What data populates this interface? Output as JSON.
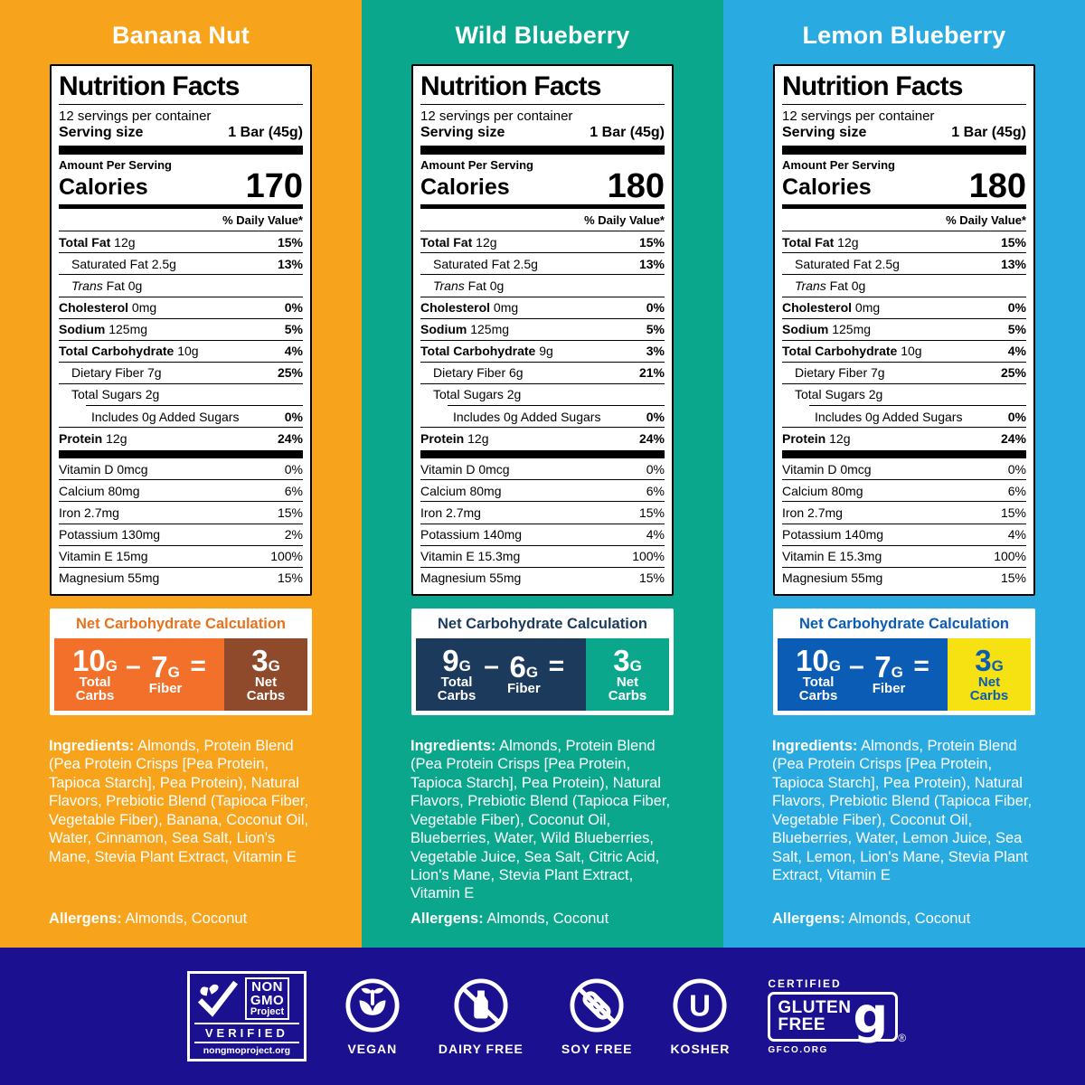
{
  "panels": [
    {
      "flavor": "Banana Nut",
      "bg": "#F7A31B",
      "label": {
        "title": "Nutrition Facts",
        "servings": "12 servings per container",
        "serving_size_label": "Serving size",
        "serving_size_value": "1 Bar (45g)",
        "amount_per": "Amount Per Serving",
        "calories_label": "Calories",
        "calories": "170",
        "dv_header": "% Daily Value*",
        "nutrients": [
          {
            "label": "Total Fat",
            "amount": "12g",
            "dv": "15%",
            "bold": true,
            "indent": 0
          },
          {
            "label": "Saturated Fat",
            "amount": "2.5g",
            "dv": "13%",
            "indent": 1
          },
          {
            "label": "Trans Fat",
            "amount": "0g",
            "dv": "",
            "indent": 1,
            "italic": true
          },
          {
            "label": "Cholesterol",
            "amount": "0mg",
            "dv": "0%",
            "bold": true,
            "indent": 0
          },
          {
            "label": "Sodium",
            "amount": "125mg",
            "dv": "5%",
            "bold": true,
            "indent": 0
          },
          {
            "label": "Total Carbohydrate",
            "amount": "10g",
            "dv": "4%",
            "bold": true,
            "indent": 0
          },
          {
            "label": "Dietary Fiber",
            "amount": "7g",
            "dv": "25%",
            "indent": 1
          },
          {
            "label": "Total Sugars",
            "amount": "2g",
            "dv": "",
            "indent": 1
          },
          {
            "label": "Includes 0g Added Sugars",
            "amount": "",
            "dv": "0%",
            "indent": 2
          },
          {
            "label": "Protein",
            "amount": "12g",
            "dv": "24%",
            "bold": true,
            "indent": 0
          }
        ],
        "vitamins": [
          {
            "label": "Vitamin D 0mcg",
            "dv": "0%"
          },
          {
            "label": "Calcium 80mg",
            "dv": "6%"
          },
          {
            "label": "Iron 2.7mg",
            "dv": "15%"
          },
          {
            "label": "Potassium 130mg",
            "dv": "2%"
          },
          {
            "label": "Vitamin E 15mg",
            "dv": "100%"
          },
          {
            "label": "Magnesium 55mg",
            "dv": "15%"
          }
        ]
      },
      "netcarb": {
        "header": "Net Carbohydrate Calculation",
        "header_color": "#E8711C",
        "eq_bg": "#F3702B",
        "net_bg": "#8E4A2B",
        "net_text": "#FFFFFF",
        "total_value": "10",
        "fiber_value": "7",
        "net_value": "3",
        "unit_g": "G",
        "total_label": "Total Carbs",
        "fiber_label": "Fiber",
        "net_label": "Net Carbs",
        "minus": "–",
        "equals": "="
      },
      "ingredients_label": "Ingredients:",
      "ingredients": "Almonds, Protein Blend (Pea Protein Crisps [Pea Protein, Tapioca Starch], Pea Protein), Natural Flavors, Prebiotic Blend (Tapioca Fiber, Vegetable Fiber), Banana, Coconut Oil, Water, Cinnamon, Sea Salt, Lion's Mane, Stevia Plant Extract, Vitamin E",
      "allergens_label": "Allergens:",
      "allergens": "Almonds, Coconut"
    },
    {
      "flavor": "Wild Blueberry",
      "bg": "#0BA78D",
      "label": {
        "title": "Nutrition Facts",
        "servings": "12 servings per container",
        "serving_size_label": "Serving size",
        "serving_size_value": "1 Bar (45g)",
        "amount_per": "Amount Per Serving",
        "calories_label": "Calories",
        "calories": "180",
        "dv_header": "% Daily Value*",
        "nutrients": [
          {
            "label": "Total Fat",
            "amount": "12g",
            "dv": "15%",
            "bold": true,
            "indent": 0
          },
          {
            "label": "Saturated Fat",
            "amount": "2.5g",
            "dv": "13%",
            "indent": 1
          },
          {
            "label": "Trans Fat",
            "amount": "0g",
            "dv": "",
            "indent": 1,
            "italic": true
          },
          {
            "label": "Cholesterol",
            "amount": "0mg",
            "dv": "0%",
            "bold": true,
            "indent": 0
          },
          {
            "label": "Sodium",
            "amount": "125mg",
            "dv": "5%",
            "bold": true,
            "indent": 0
          },
          {
            "label": "Total Carbohydrate",
            "amount": "9g",
            "dv": "3%",
            "bold": true,
            "indent": 0
          },
          {
            "label": "Dietary Fiber",
            "amount": "6g",
            "dv": "21%",
            "indent": 1
          },
          {
            "label": "Total Sugars",
            "amount": "2g",
            "dv": "",
            "indent": 1
          },
          {
            "label": "Includes 0g Added Sugars",
            "amount": "",
            "dv": "0%",
            "indent": 2
          },
          {
            "label": "Protein",
            "amount": "12g",
            "dv": "24%",
            "bold": true,
            "indent": 0
          }
        ],
        "vitamins": [
          {
            "label": "Vitamin D 0mcg",
            "dv": "0%"
          },
          {
            "label": "Calcium 80mg",
            "dv": "6%"
          },
          {
            "label": "Iron 2.7mg",
            "dv": "15%"
          },
          {
            "label": "Potassium 140mg",
            "dv": "4%"
          },
          {
            "label": "Vitamin E 15.3mg",
            "dv": "100%"
          },
          {
            "label": "Magnesium 55mg",
            "dv": "15%"
          }
        ]
      },
      "netcarb": {
        "header": "Net Carbohydrate Calculation",
        "header_color": "#1B3A5C",
        "eq_bg": "#1B3A5C",
        "net_bg": "#0BA78D",
        "net_text": "#FFFFFF",
        "total_value": "9",
        "fiber_value": "6",
        "net_value": "3",
        "unit_g": "G",
        "total_label": "Total Carbs",
        "fiber_label": "Fiber",
        "net_label": "Net Carbs",
        "minus": "–",
        "equals": "="
      },
      "ingredients_label": "Ingredients:",
      "ingredients": "Almonds, Protein Blend (Pea Protein Crisps [Pea Protein, Tapioca Starch], Pea Protein), Natural Flavors, Prebiotic Blend (Tapioca Fiber, Vegetable Fiber), Coconut Oil, Blueberries, Water, Wild Blueberries, Vegetable Juice, Sea Salt, Citric Acid, Lion's Mane, Stevia Plant Extract, Vitamin E",
      "allergens_label": "Allergens:",
      "allergens": "Almonds, Coconut"
    },
    {
      "flavor": "Lemon Blueberry",
      "bg": "#29ABE2",
      "label": {
        "title": "Nutrition Facts",
        "servings": "12 servings per container",
        "serving_size_label": "Serving size",
        "serving_size_value": "1 Bar (45g)",
        "amount_per": "Amount Per Serving",
        "calories_label": "Calories",
        "calories": "180",
        "dv_header": "% Daily Value*",
        "nutrients": [
          {
            "label": "Total Fat",
            "amount": "12g",
            "dv": "15%",
            "bold": true,
            "indent": 0
          },
          {
            "label": "Saturated Fat",
            "amount": "2.5g",
            "dv": "13%",
            "indent": 1
          },
          {
            "label": "Trans Fat",
            "amount": "0g",
            "dv": "",
            "indent": 1,
            "italic": true
          },
          {
            "label": "Cholesterol",
            "amount": "0mg",
            "dv": "0%",
            "bold": true,
            "indent": 0
          },
          {
            "label": "Sodium",
            "amount": "125mg",
            "dv": "5%",
            "bold": true,
            "indent": 0
          },
          {
            "label": "Total Carbohydrate",
            "amount": "10g",
            "dv": "4%",
            "bold": true,
            "indent": 0
          },
          {
            "label": "Dietary Fiber",
            "amount": "7g",
            "dv": "25%",
            "indent": 1
          },
          {
            "label": "Total Sugars",
            "amount": "2g",
            "dv": "",
            "indent": 1
          },
          {
            "label": "Includes 0g Added Sugars",
            "amount": "",
            "dv": "0%",
            "indent": 2
          },
          {
            "label": "Protein",
            "amount": "12g",
            "dv": "24%",
            "bold": true,
            "indent": 0
          }
        ],
        "vitamins": [
          {
            "label": "Vitamin D 0mcg",
            "dv": "0%"
          },
          {
            "label": "Calcium 80mg",
            "dv": "6%"
          },
          {
            "label": "Iron 2.7mg",
            "dv": "15%"
          },
          {
            "label": "Potassium 140mg",
            "dv": "4%"
          },
          {
            "label": "Vitamin E 15.3mg",
            "dv": "100%"
          },
          {
            "label": "Magnesium 55mg",
            "dv": "15%"
          }
        ]
      },
      "netcarb": {
        "header": "Net Carbohydrate Calculation",
        "header_color": "#0A5CB4",
        "eq_bg": "#0A5CB4",
        "net_bg": "#F6E113",
        "net_text": "#0A5CB4",
        "total_value": "10",
        "fiber_value": "7",
        "net_value": "3",
        "unit_g": "G",
        "total_label": "Total Carbs",
        "fiber_label": "Fiber",
        "net_label": "Net Carbs",
        "minus": "–",
        "equals": "="
      },
      "ingredients_label": "Ingredients:",
      "ingredients": "Almonds, Protein Blend (Pea Protein Crisps [Pea Protein, Tapioca Starch], Pea Protein), Natural Flavors, Prebiotic Blend (Tapioca Fiber, Vegetable Fiber), Coconut Oil, Blueberries, Water, Lemon Juice, Sea Salt, Lemon, Lion's Mane, Stevia Plant Extract, Vitamin E",
      "allergens_label": "Allergens:",
      "allergens": "Almonds, Coconut"
    }
  ],
  "footer": {
    "bg": "#1B1190",
    "nongmo": {
      "line1": "NON",
      "line2": "GMO",
      "line3": "Project",
      "verified": "VERIFIED",
      "url": "nongmoproject.org"
    },
    "badges": {
      "vegan": "VEGAN",
      "dairy_free": "DAIRY FREE",
      "soy_free": "SOY FREE",
      "kosher": "KOSHER"
    },
    "kosher_letter": "U",
    "gluten": {
      "certified": "CERTIFIED",
      "line1": "GLUTEN",
      "line2": "FREE",
      "g": "g",
      "reg": "®",
      "url": "GFCO.ORG"
    }
  }
}
